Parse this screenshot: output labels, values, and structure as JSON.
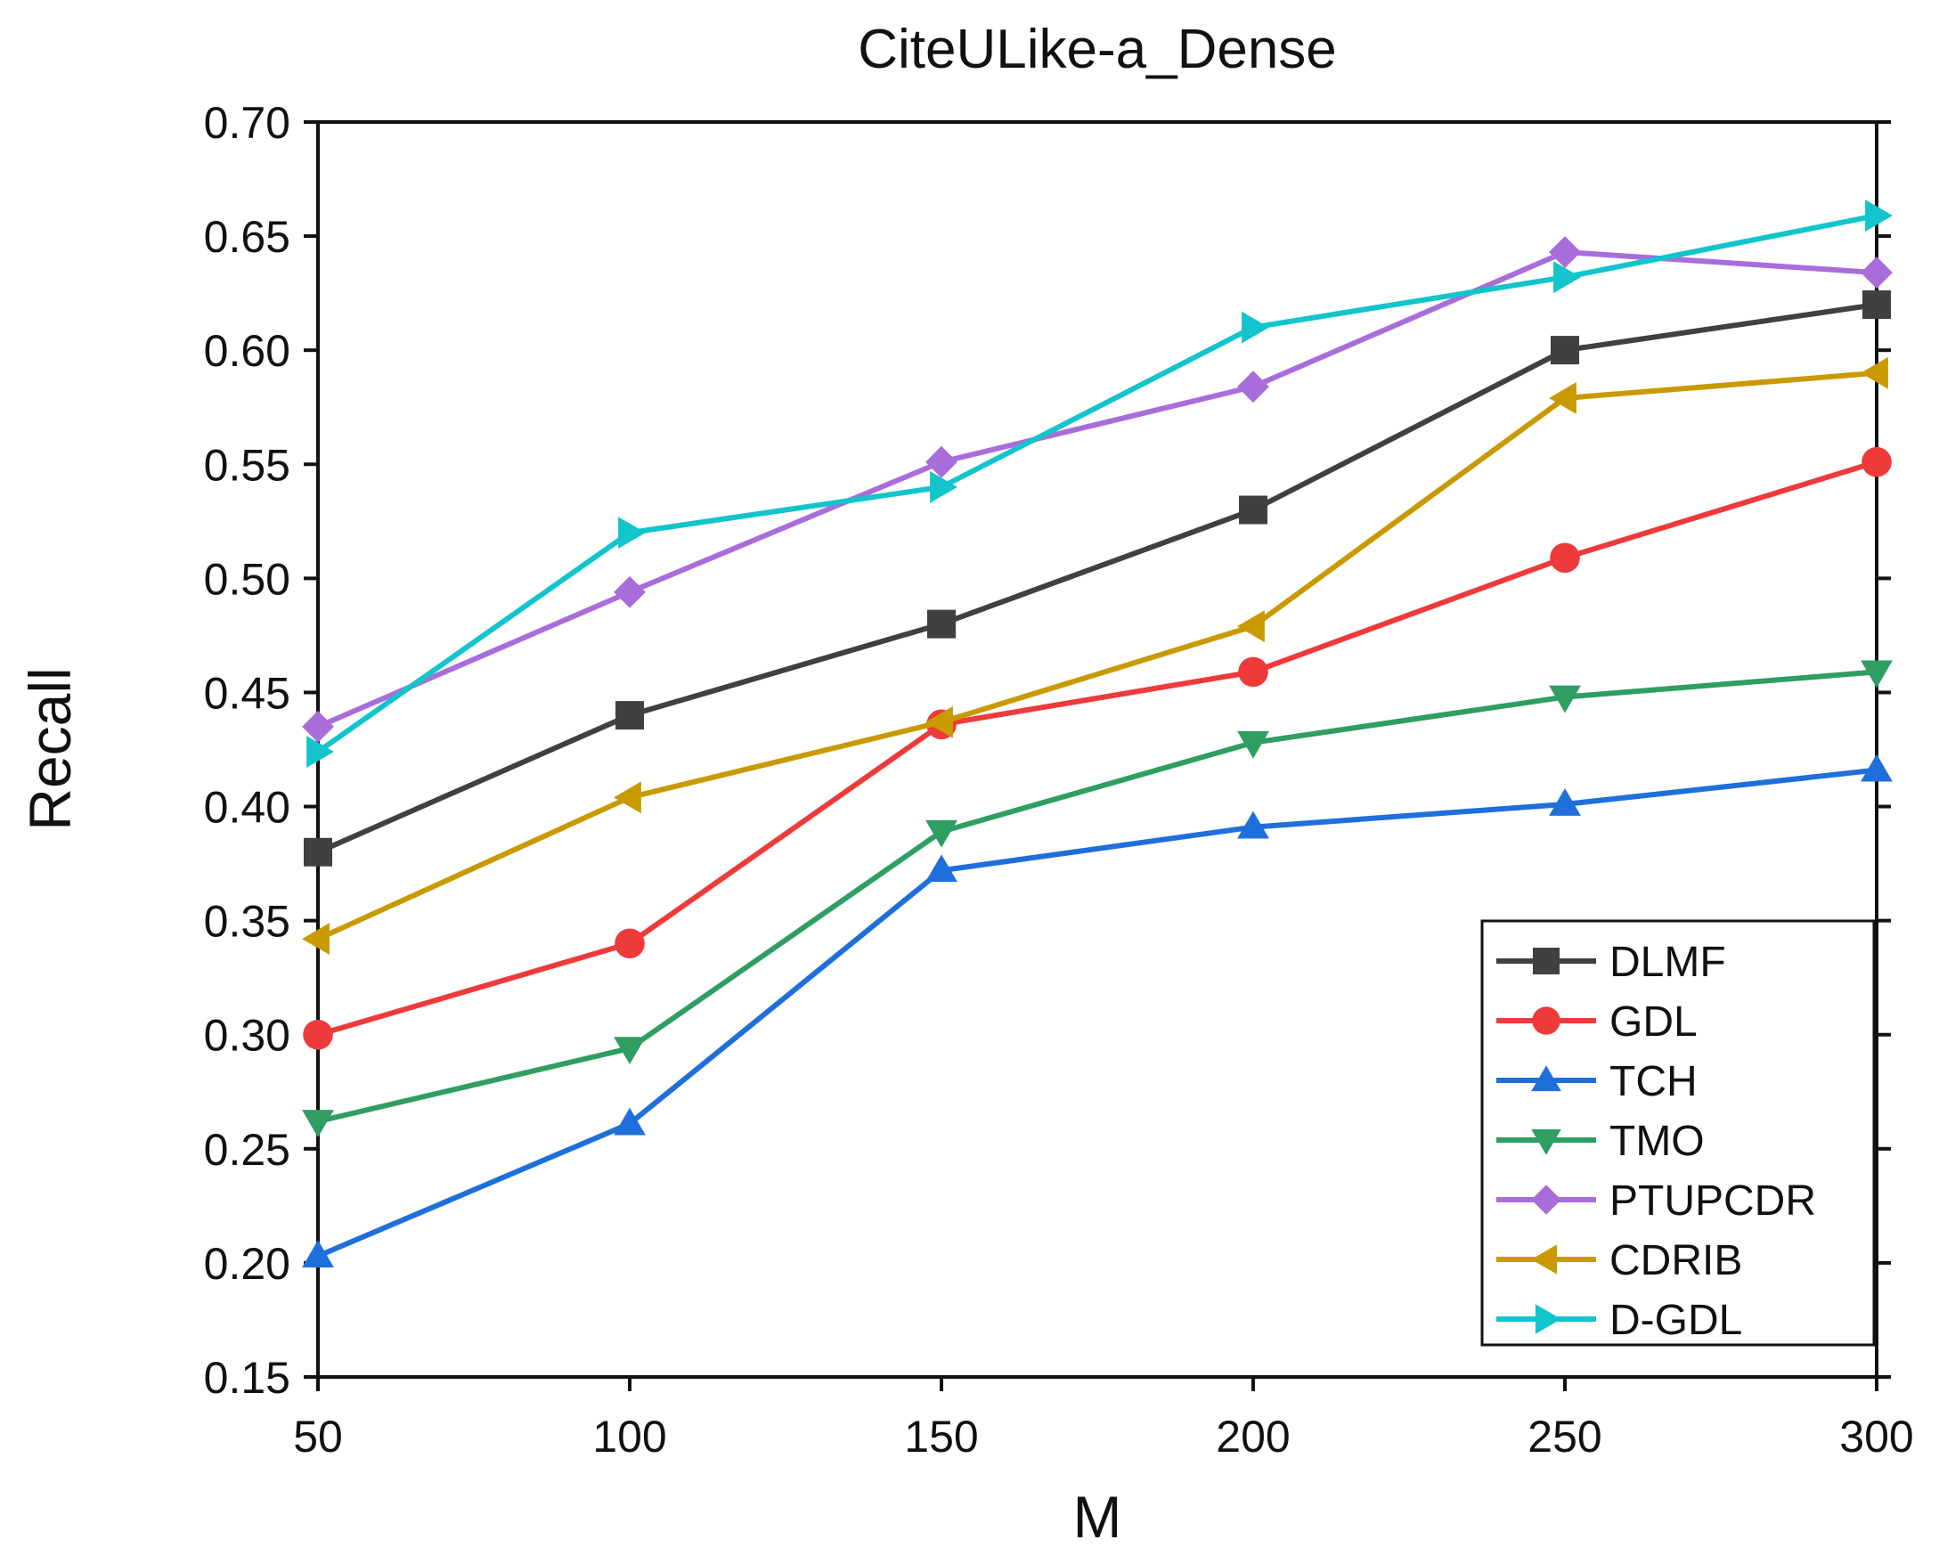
{
  "chart_data": {
    "type": "line",
    "title": "CiteULike-a_Dense",
    "xlabel": "M",
    "ylabel": "Recall",
    "x": [
      50,
      100,
      150,
      200,
      250,
      300
    ],
    "xlim": [
      50,
      300
    ],
    "ylim": [
      0.15,
      0.7
    ],
    "x_ticks": [
      "50",
      "100",
      "150",
      "200",
      "250",
      "300"
    ],
    "y_ticks": [
      "0.15",
      "0.20",
      "0.25",
      "0.30",
      "0.35",
      "0.40",
      "0.45",
      "0.50",
      "0.55",
      "0.60",
      "0.65",
      "0.70"
    ],
    "grid": false,
    "legend_position": "bottom-right",
    "series": [
      {
        "name": "DLMF",
        "color": "#404040",
        "marker": "square",
        "values": [
          0.38,
          0.44,
          0.48,
          0.53,
          0.6,
          0.62
        ]
      },
      {
        "name": "GDL",
        "color": "#ee3a3a",
        "marker": "circle",
        "values": [
          0.3,
          0.34,
          0.436,
          0.459,
          0.509,
          0.551
        ]
      },
      {
        "name": "TCH",
        "color": "#1f6fdb",
        "marker": "triangle-up",
        "values": [
          0.203,
          0.261,
          0.372,
          0.391,
          0.401,
          0.416
        ]
      },
      {
        "name": "TMO",
        "color": "#2f9e62",
        "marker": "triangle-down",
        "values": [
          0.262,
          0.294,
          0.389,
          0.428,
          0.448,
          0.459
        ]
      },
      {
        "name": "PTUPCDR",
        "color": "#a96ddb",
        "marker": "diamond",
        "values": [
          0.435,
          0.494,
          0.551,
          0.584,
          0.643,
          0.634
        ]
      },
      {
        "name": "CDRIB",
        "color": "#c99a00",
        "marker": "triangle-left",
        "values": [
          0.342,
          0.404,
          0.437,
          0.479,
          0.579,
          0.59
        ]
      },
      {
        "name": "D-GDL",
        "color": "#12c4cc",
        "marker": "triangle-right",
        "values": [
          0.424,
          0.52,
          0.54,
          0.61,
          0.632,
          0.659
        ]
      }
    ]
  }
}
